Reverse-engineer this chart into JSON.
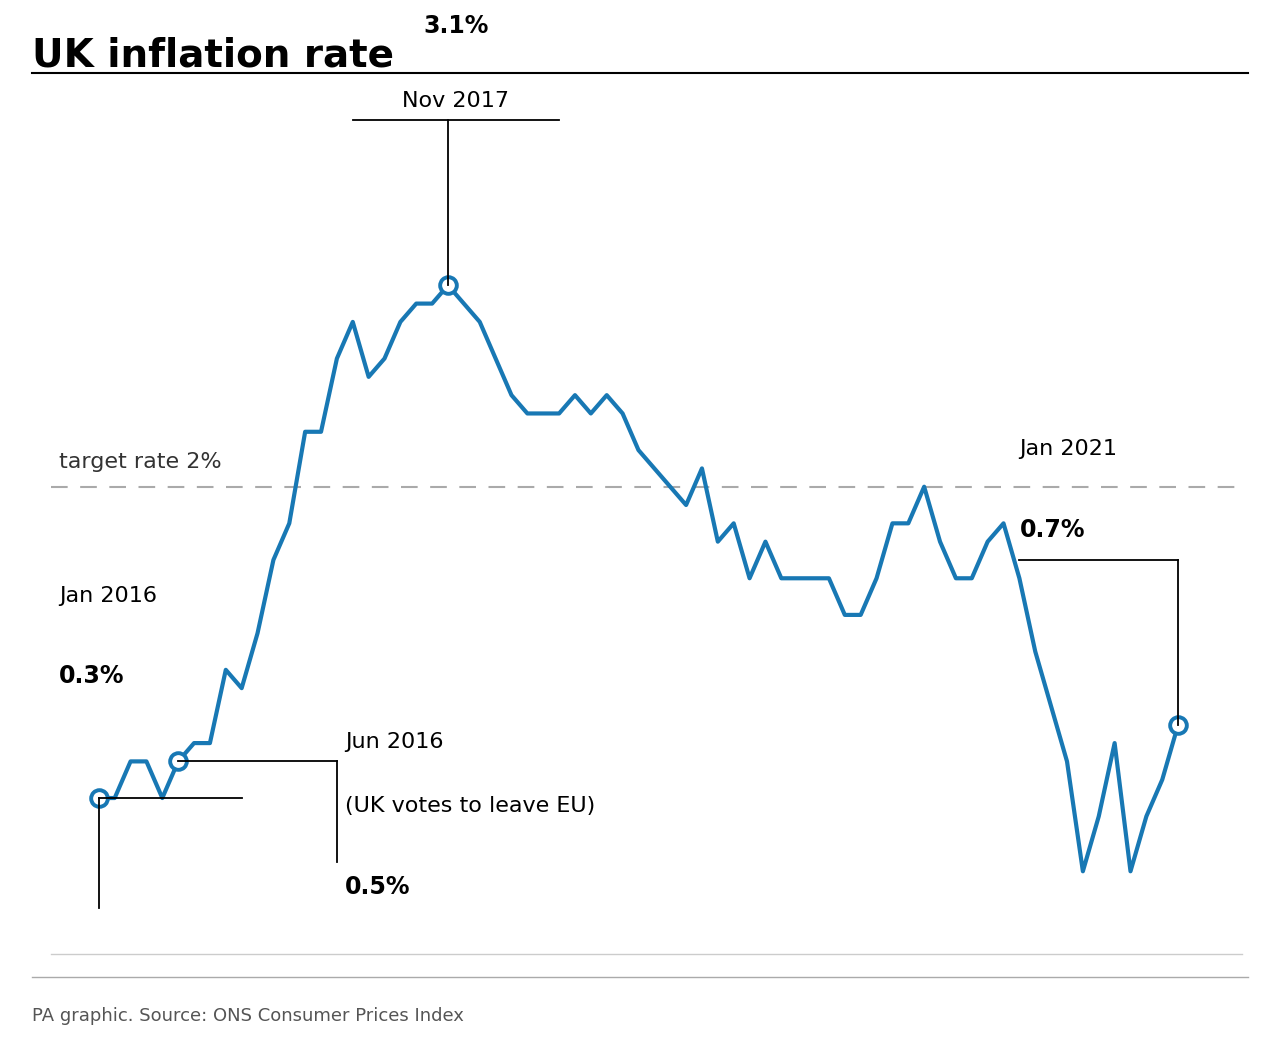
{
  "title": "UK inflation rate",
  "source": "PA graphic. Source: ONS Consumer Prices Index",
  "line_color": "#1878b4",
  "target_rate": 2.0,
  "target_label": "target rate 2%",
  "background_color": "#ffffff",
  "ylim": [
    -0.55,
    4.2
  ],
  "xlim": [
    -3,
    72
  ],
  "months": [
    0.3,
    0.3,
    0.5,
    0.5,
    0.3,
    0.5,
    0.6,
    0.6,
    1.0,
    0.9,
    1.2,
    1.6,
    1.8,
    2.3,
    2.3,
    2.7,
    2.9,
    2.6,
    2.7,
    2.9,
    3.0,
    3.0,
    3.1,
    3.0,
    2.9,
    2.7,
    2.5,
    2.4,
    2.4,
    2.4,
    2.5,
    2.4,
    2.5,
    2.4,
    2.2,
    2.1,
    2.0,
    1.9,
    2.1,
    1.7,
    1.8,
    1.5,
    1.7,
    1.5,
    1.5,
    1.5,
    1.5,
    1.3,
    1.3,
    1.5,
    1.8,
    1.8,
    2.0,
    1.7,
    1.5,
    1.5,
    1.7,
    1.8,
    1.5,
    1.1,
    0.8,
    0.5,
    -0.1,
    0.2,
    0.6,
    -0.1,
    0.2,
    0.4,
    0.7
  ],
  "marker_indices": [
    0,
    5,
    22,
    68
  ],
  "marker_values": [
    0.3,
    0.5,
    3.1,
    0.7
  ]
}
